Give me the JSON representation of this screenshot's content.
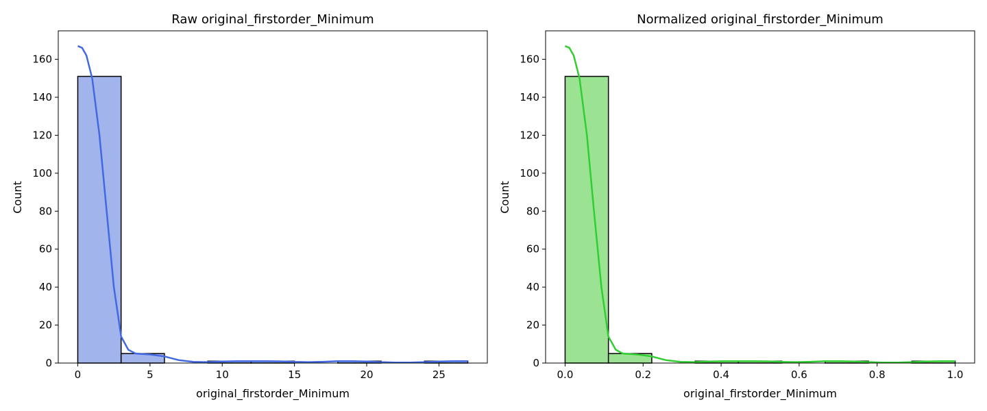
{
  "chart_data": [
    {
      "type": "bar",
      "title": "Raw original_firstorder_Minimum",
      "xlabel": "original_firstorder_Minimum",
      "ylabel": "Count",
      "xlim": [
        -1.35,
        28.35
      ],
      "ylim": [
        0,
        175
      ],
      "xticks": [
        0,
        5,
        10,
        15,
        20,
        25
      ],
      "yticks": [
        0,
        20,
        40,
        60,
        80,
        100,
        120,
        140,
        160
      ],
      "bins": [
        {
          "x0": 0,
          "x1": 3,
          "count": 151
        },
        {
          "x0": 3,
          "x1": 6,
          "count": 5
        },
        {
          "x0": 6,
          "x1": 9,
          "count": 0
        },
        {
          "x0": 9,
          "x1": 12,
          "count": 1
        },
        {
          "x0": 12,
          "x1": 15,
          "count": 1
        },
        {
          "x0": 15,
          "x1": 18,
          "count": 0
        },
        {
          "x0": 18,
          "x1": 21,
          "count": 1
        },
        {
          "x0": 21,
          "x1": 24,
          "count": 0
        },
        {
          "x0": 24,
          "x1": 27,
          "count": 1
        }
      ],
      "kde": [
        [
          0,
          167
        ],
        [
          0.3,
          166
        ],
        [
          0.6,
          162
        ],
        [
          1.0,
          150
        ],
        [
          1.5,
          120
        ],
        [
          2.0,
          80
        ],
        [
          2.5,
          40
        ],
        [
          3.0,
          14
        ],
        [
          3.5,
          7
        ],
        [
          4.0,
          5
        ],
        [
          5.0,
          4.5
        ],
        [
          6.0,
          3.5
        ],
        [
          7.0,
          1.5
        ],
        [
          8.0,
          0.6
        ],
        [
          9.0,
          0.5
        ],
        [
          10,
          0.8
        ],
        [
          11,
          1
        ],
        [
          12,
          1
        ],
        [
          13,
          1
        ],
        [
          14,
          0.9
        ],
        [
          15,
          0.6
        ],
        [
          16,
          0.5
        ],
        [
          17,
          0.7
        ],
        [
          18,
          1
        ],
        [
          19,
          1
        ],
        [
          20,
          0.8
        ],
        [
          21,
          0.5
        ],
        [
          22,
          0.3
        ],
        [
          23,
          0.3
        ],
        [
          24,
          0.5
        ],
        [
          25,
          0.8
        ],
        [
          26,
          1
        ],
        [
          27,
          1
        ]
      ],
      "bar_color": "#a1b4ec",
      "line_color": "#4169e1"
    },
    {
      "type": "bar",
      "title": "Normalized original_firstorder_Minimum",
      "xlabel": "original_firstorder_Minimum",
      "ylabel": "Count",
      "xlim": [
        -0.05,
        1.05
      ],
      "ylim": [
        0,
        175
      ],
      "xticks": [
        0.0,
        0.2,
        0.4,
        0.6,
        0.8,
        1.0
      ],
      "xtick_labels": [
        "0.0",
        "0.2",
        "0.4",
        "0.6",
        "0.8",
        "1.0"
      ],
      "yticks": [
        0,
        20,
        40,
        60,
        80,
        100,
        120,
        140,
        160
      ],
      "bins": [
        {
          "x0": 0,
          "x1": 0.1111,
          "count": 151
        },
        {
          "x0": 0.1111,
          "x1": 0.2222,
          "count": 5
        },
        {
          "x0": 0.2222,
          "x1": 0.3333,
          "count": 0
        },
        {
          "x0": 0.3333,
          "x1": 0.4444,
          "count": 1
        },
        {
          "x0": 0.4444,
          "x1": 0.5556,
          "count": 1
        },
        {
          "x0": 0.5556,
          "x1": 0.6667,
          "count": 0
        },
        {
          "x0": 0.6667,
          "x1": 0.7778,
          "count": 1
        },
        {
          "x0": 0.7778,
          "x1": 0.8889,
          "count": 0
        },
        {
          "x0": 0.8889,
          "x1": 1.0,
          "count": 1
        }
      ],
      "kde": [
        [
          0,
          167
        ],
        [
          0.011,
          166
        ],
        [
          0.022,
          162
        ],
        [
          0.037,
          150
        ],
        [
          0.056,
          120
        ],
        [
          0.074,
          80
        ],
        [
          0.093,
          40
        ],
        [
          0.111,
          14
        ],
        [
          0.13,
          7
        ],
        [
          0.148,
          5
        ],
        [
          0.185,
          4.5
        ],
        [
          0.222,
          3.5
        ],
        [
          0.259,
          1.5
        ],
        [
          0.296,
          0.6
        ],
        [
          0.333,
          0.5
        ],
        [
          0.37,
          0.8
        ],
        [
          0.407,
          1
        ],
        [
          0.444,
          1
        ],
        [
          0.481,
          1
        ],
        [
          0.519,
          0.9
        ],
        [
          0.556,
          0.6
        ],
        [
          0.593,
          0.5
        ],
        [
          0.63,
          0.7
        ],
        [
          0.667,
          1
        ],
        [
          0.704,
          1
        ],
        [
          0.741,
          0.8
        ],
        [
          0.778,
          0.5
        ],
        [
          0.815,
          0.3
        ],
        [
          0.852,
          0.3
        ],
        [
          0.889,
          0.5
        ],
        [
          0.926,
          0.8
        ],
        [
          0.963,
          1
        ],
        [
          1.0,
          1
        ]
      ],
      "bar_color": "#9be393",
      "line_color": "#32cd32"
    }
  ]
}
